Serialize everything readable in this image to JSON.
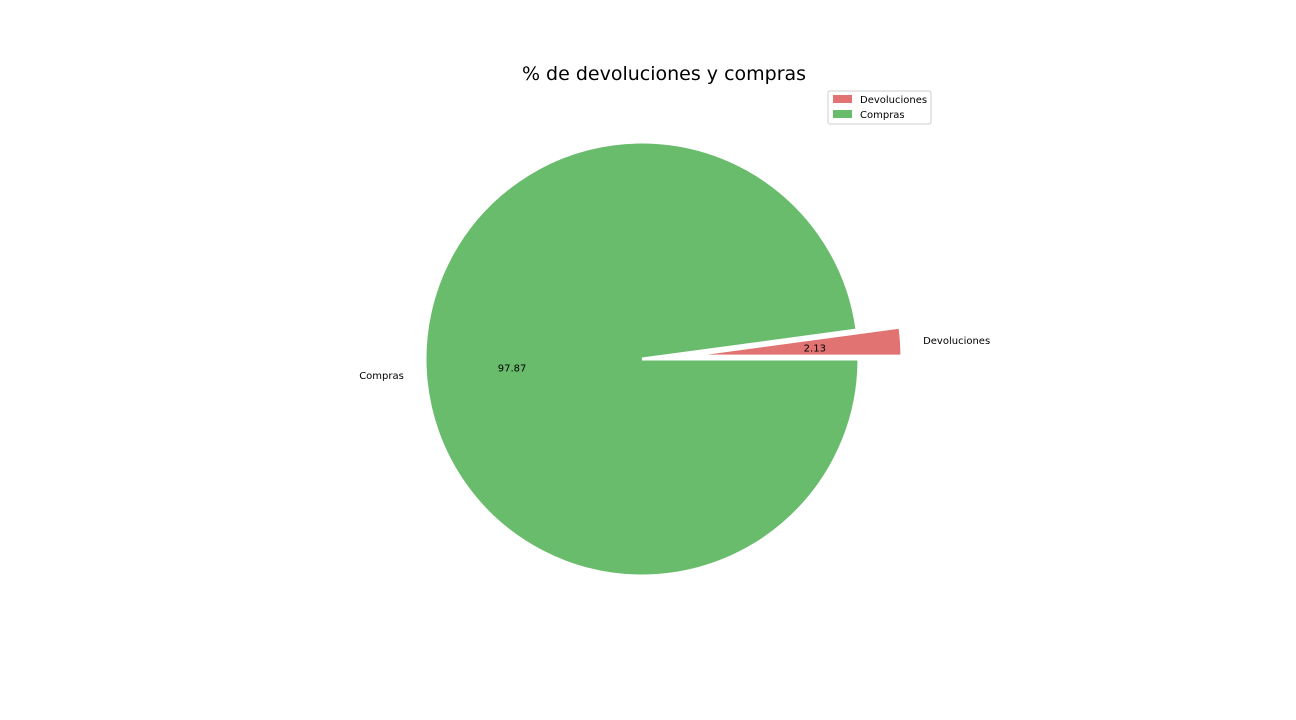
{
  "chart_data": {
    "type": "pie",
    "title": "% de devoluciones y compras",
    "slices": [
      {
        "label": "Devoluciones",
        "value": 2.13,
        "value_label": "2.13",
        "color": "#e17372",
        "exploded": true
      },
      {
        "label": "Compras",
        "value": 97.87,
        "value_label": "97.87",
        "color": "#68bc6b",
        "exploded": false
      }
    ],
    "legend": {
      "placement": "upper-right",
      "entries": [
        "Devoluciones",
        "Compras"
      ]
    }
  }
}
